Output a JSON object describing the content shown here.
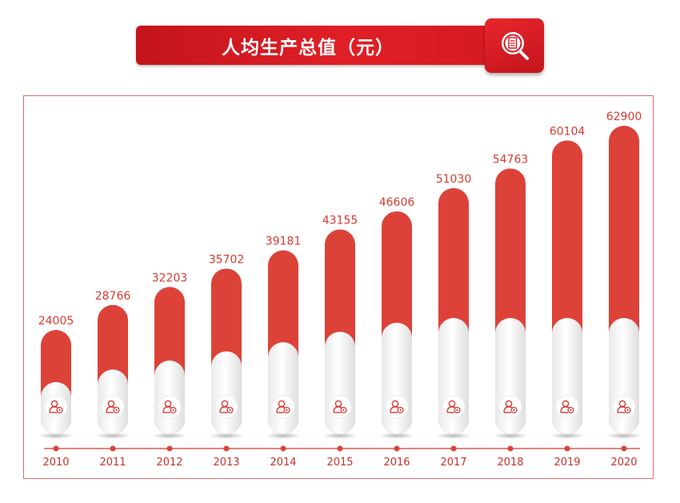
{
  "title": "人均生产总值（元）",
  "chart_data": {
    "type": "bar",
    "title": "人均生产总值（元）",
    "categories": [
      "2010",
      "2011",
      "2012",
      "2013",
      "2014",
      "2015",
      "2016",
      "2017",
      "2018",
      "2019",
      "2020"
    ],
    "values": [
      24005,
      28766,
      32203,
      35702,
      39181,
      43155,
      46606,
      51030,
      54763,
      60104,
      62900
    ],
    "xlabel": "",
    "ylabel": "",
    "legend": "none",
    "grid": false
  },
  "colors": {
    "accent": "#dc4238",
    "title_red": "#d81b21",
    "label_text": "#d83a32",
    "year_text": "#c8322b",
    "frame": "#e46c6c"
  },
  "icons": {
    "title_badge": "document-search-icon",
    "bar_icon": "person-settings-icon"
  }
}
